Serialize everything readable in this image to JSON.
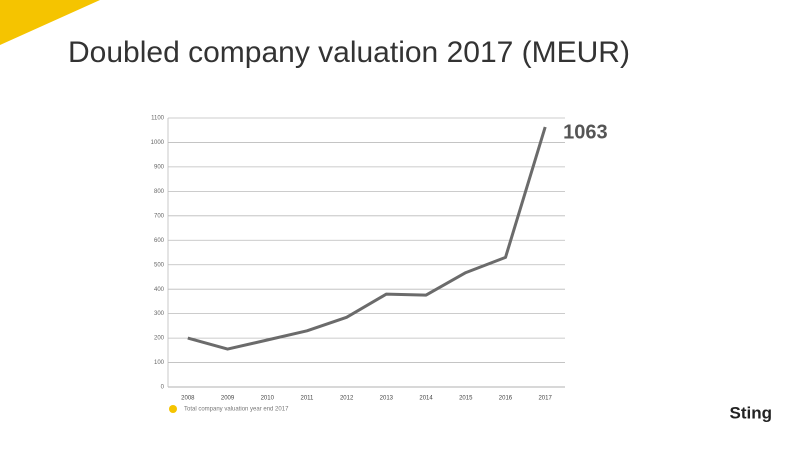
{
  "chart_data": {
    "type": "line",
    "title": "Doubled company valuation 2017 (MEUR)",
    "categories": [
      "2008",
      "2009",
      "2010",
      "2011",
      "2012",
      "2013",
      "2014",
      "2015",
      "2016",
      "2017"
    ],
    "series": [
      {
        "name": "Total company valuation year end 2017",
        "color": "#6b6b6b",
        "legend_color": "#f5c400",
        "values": [
          200,
          155,
          192,
          230,
          285,
          380,
          376,
          468,
          530,
          1063
        ]
      }
    ],
    "ylim": [
      0,
      1100
    ],
    "yticks": [
      0,
      100,
      200,
      300,
      400,
      500,
      600,
      700,
      800,
      900,
      1000,
      1100
    ],
    "grid": true,
    "legend": "bottom-left"
  },
  "footer_logo": "Sting"
}
